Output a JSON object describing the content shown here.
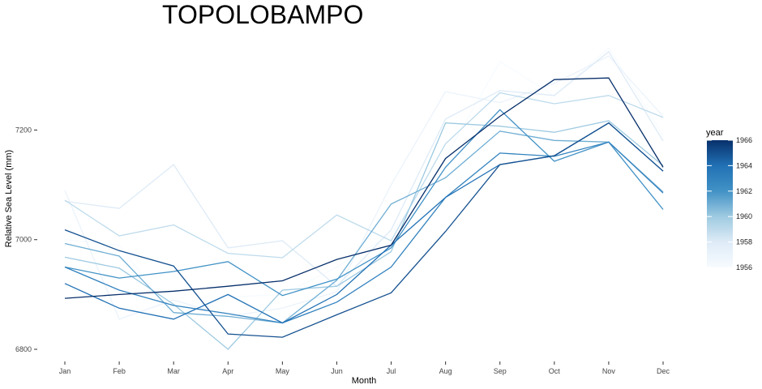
{
  "chart_data": {
    "type": "line",
    "title": "TOPOLOBAMPO",
    "xlabel": "Month",
    "ylabel": "Relative Sea Level (mm)",
    "categories": [
      "Jan",
      "Feb",
      "Mar",
      "Apr",
      "May",
      "Jun",
      "Jul",
      "Aug",
      "Sep",
      "Oct",
      "Nov",
      "Dec"
    ],
    "y_ticks": [
      6800,
      7000,
      7200
    ],
    "ylim": [
      6785,
      7370
    ],
    "grid": false,
    "legend": {
      "title": "year",
      "placement": "right",
      "type": "colorbar",
      "min": 1956,
      "max": 1966,
      "ticks": [
        1956,
        1958,
        1960,
        1962,
        1964,
        1966
      ],
      "color_low": "#f7fbff",
      "color_high": "#08306b"
    },
    "series": [
      {
        "year": 1956,
        "values": [
          7000,
          6990,
          6860,
          6895,
          6900,
          6950,
          7010,
          7150,
          7325,
          7262,
          7350,
          7190
        ]
      },
      {
        "year": 1957,
        "values": [
          7090,
          6855,
          6890,
          6860,
          6875,
          6905,
          7100,
          7270,
          7250,
          7285,
          7335,
          7225
        ]
      },
      {
        "year": 1958,
        "values": [
          7070,
          7057,
          7137,
          6985,
          6998,
          6915,
          7018,
          7220,
          7272,
          7263,
          7343,
          7180
        ]
      },
      {
        "year": 1959,
        "values": [
          7072,
          7007,
          7027,
          6975,
          6967,
          7045,
          6998,
          7175,
          7268,
          7248,
          7263,
          7223
        ]
      },
      {
        "year": 1960,
        "values": [
          6968,
          6948,
          6882,
          6800,
          6908,
          6915,
          6978,
          7213,
          7207,
          7196,
          7217,
          7135
        ]
      },
      {
        "year": 1961,
        "values": [
          6993,
          6970,
          6867,
          6860,
          6848,
          6926,
          7065,
          7113,
          7198,
          7181,
          7178,
          7087
        ]
      },
      {
        "year": 1962,
        "values": [
          6950,
          6930,
          6942,
          6960,
          6898,
          6928,
          6985,
          7132,
          7237,
          7143,
          7178,
          7055
        ]
      },
      {
        "year": 1963,
        "values": [
          6950,
          6908,
          6880,
          6865,
          6848,
          6886,
          6950,
          7077,
          7158,
          7152,
          7178,
          7085
        ]
      },
      {
        "year": 1964,
        "values": [
          6920,
          6875,
          6855,
          6900,
          6848,
          6900,
          6990,
          7077,
          7137,
          7153,
          7213,
          7125
        ]
      },
      {
        "year": 1965,
        "values": [
          7018,
          6980,
          6952,
          6828,
          6822,
          6863,
          6903,
          7015,
          7137,
          7153,
          7213,
          7125
        ]
      },
      {
        "year": 1966,
        "values": [
          6893,
          6900,
          6906,
          6915,
          6925,
          6964,
          6990,
          7148,
          7225,
          7292,
          7295,
          7132
        ]
      }
    ]
  }
}
